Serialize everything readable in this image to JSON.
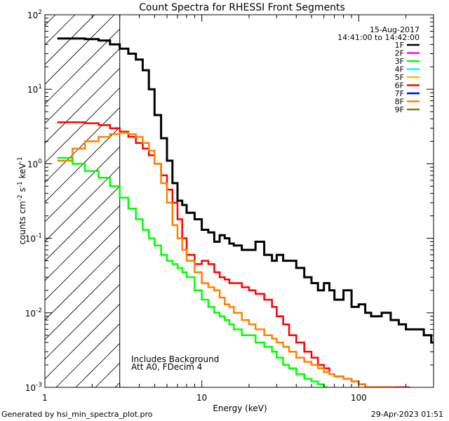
{
  "chart_data": {
    "type": "line",
    "title": "Count Spectra for RHESSI Front Segments",
    "xlabel": "Energy (keV)",
    "ylabel": "counts cm⁻² s⁻¹ keV⁻¹",
    "ylabel_parts": [
      "counts cm",
      "-2",
      " s",
      "-1",
      " keV",
      "-1"
    ],
    "xscale": "log",
    "yscale": "log",
    "xlim": [
      1,
      300
    ],
    "ylim": [
      0.001,
      100
    ],
    "x_ticks": [
      {
        "value": 1,
        "label": "1"
      },
      {
        "value": 10,
        "label": "10"
      },
      {
        "value": 100,
        "label": "100"
      }
    ],
    "y_ticks": [
      {
        "value": 0.001,
        "base": "10",
        "exp": "-3"
      },
      {
        "value": 0.01,
        "base": "10",
        "exp": "-2"
      },
      {
        "value": 0.1,
        "base": "10",
        "exp": "-1"
      },
      {
        "value": 1,
        "base": "10",
        "exp": "0"
      },
      {
        "value": 10,
        "base": "10",
        "exp": "1"
      },
      {
        "value": 100,
        "base": "10",
        "exp": "2"
      }
    ],
    "date": "15-Aug-2017",
    "time_range": "14:41:00 to 14:42:00",
    "hatched_region_upper_keV": 3,
    "annotation_lines": [
      "Includes Background",
      "Att A0, FDecim 4"
    ],
    "legend": [
      {
        "name": "1F",
        "color": "#000000"
      },
      {
        "name": "2F",
        "color": "#ff00ff"
      },
      {
        "name": "3F",
        "color": "#00ff00"
      },
      {
        "name": "4F",
        "color": "#00ffff"
      },
      {
        "name": "5F",
        "color": "#ffbf00"
      },
      {
        "name": "6F",
        "color": "#ff0000"
      },
      {
        "name": "7F",
        "color": "#0000ff"
      },
      {
        "name": "8F",
        "color": "#ff8000"
      },
      {
        "name": "9F",
        "color": "#808000"
      }
    ],
    "series": [
      {
        "name": "1F",
        "color": "#000000",
        "stroke_width": 3,
        "x": [
          1.2,
          1.5,
          1.8,
          2.2,
          2.6,
          3.0,
          3.4,
          3.8,
          4.2,
          4.6,
          5.0,
          5.5,
          6.0,
          6.5,
          7.0,
          7.5,
          8.0,
          9.0,
          10.0,
          11.0,
          12.0,
          13.0,
          14.0,
          15.0,
          16.0,
          18.0,
          20.0,
          22.0,
          25.0,
          28.0,
          30.0,
          33.0,
          36.0,
          40.0,
          45.0,
          50.0,
          55.0,
          60.0,
          65.0,
          70.0,
          80.0,
          90.0,
          100.0,
          110.0,
          120.0,
          140.0,
          160.0,
          180.0,
          200.0,
          230.0,
          260.0,
          290.0
        ],
        "y": [
          48,
          48,
          47,
          45,
          40,
          35,
          30,
          25,
          18,
          10,
          4.5,
          2.2,
          1.1,
          0.55,
          0.32,
          0.28,
          0.22,
          0.18,
          0.13,
          0.12,
          0.09,
          0.11,
          0.1,
          0.085,
          0.08,
          0.07,
          0.07,
          0.09,
          0.06,
          0.05,
          0.06,
          0.05,
          0.05,
          0.04,
          0.03,
          0.025,
          0.02,
          0.025,
          0.02,
          0.015,
          0.02,
          0.012,
          0.013,
          0.01,
          0.009,
          0.01,
          0.008,
          0.007,
          0.006,
          0.006,
          0.005,
          0.004
        ]
      },
      {
        "name": "6F",
        "color": "#ff0000",
        "stroke_width": 2.5,
        "x": [
          1.2,
          1.5,
          1.8,
          2.2,
          2.6,
          3.0,
          3.4,
          3.8,
          4.2,
          4.6,
          5.0,
          5.5,
          6.0,
          6.5,
          7.0,
          7.5,
          8.0,
          9.0,
          10.0,
          11.0,
          12.0,
          13.0,
          14.0,
          15.0,
          16.0,
          18.0,
          20.0,
          22.0,
          25.0,
          28.0,
          30.0,
          33.0,
          36.0,
          40.0,
          45.0,
          50.0,
          55.0,
          60.0,
          65.0,
          70.0,
          80.0,
          90.0,
          100.0,
          110.0,
          120.0,
          140.0,
          160.0,
          180.0,
          200.0
        ],
        "y": [
          3.6,
          3.6,
          3.5,
          3.3,
          3.0,
          2.7,
          2.3,
          1.9,
          1.6,
          1.3,
          1.0,
          0.7,
          0.45,
          0.3,
          0.18,
          0.1,
          0.06,
          0.045,
          0.05,
          0.045,
          0.035,
          0.03,
          0.028,
          0.025,
          0.025,
          0.022,
          0.02,
          0.018,
          0.015,
          0.012,
          0.009,
          0.007,
          0.005,
          0.004,
          0.003,
          0.0025,
          0.002,
          0.0018,
          0.0015,
          0.0014,
          0.0013,
          0.0012,
          0.0011,
          0.001,
          0.001,
          0.001,
          0.001,
          0.001,
          0.001
        ]
      },
      {
        "name": "8F",
        "color": "#ff8000",
        "stroke_width": 2.5,
        "x": [
          1.2,
          1.5,
          1.8,
          2.2,
          2.6,
          3.0,
          3.4,
          3.8,
          4.2,
          4.6,
          5.0,
          5.5,
          6.0,
          6.5,
          7.0,
          7.5,
          8.0,
          9.0,
          10.0,
          11.0,
          12.0,
          13.0,
          14.0,
          15.0,
          16.0,
          18.0,
          20.0,
          22.0,
          25.0,
          28.0,
          30.0,
          33.0,
          36.0,
          40.0,
          45.0,
          50.0,
          55.0,
          60.0,
          65.0,
          70.0,
          80.0,
          90.0,
          100.0,
          110.0,
          120.0,
          140.0,
          160.0
        ],
        "y": [
          1.1,
          1.6,
          2.0,
          2.3,
          2.5,
          2.6,
          2.5,
          2.3,
          1.9,
          1.5,
          1.0,
          0.55,
          0.3,
          0.15,
          0.1,
          0.07,
          0.05,
          0.035,
          0.025,
          0.022,
          0.02,
          0.016,
          0.013,
          0.012,
          0.01,
          0.008,
          0.007,
          0.006,
          0.005,
          0.0045,
          0.004,
          0.0035,
          0.003,
          0.0025,
          0.0022,
          0.002,
          0.0018,
          0.0016,
          0.0015,
          0.0014,
          0.0013,
          0.0012,
          0.0011,
          0.001,
          0.001,
          0.001,
          0.001
        ]
      },
      {
        "name": "3F",
        "color": "#00ff00",
        "stroke_width": 2.5,
        "x": [
          1.2,
          1.5,
          1.8,
          2.2,
          2.6,
          3.0,
          3.4,
          3.8,
          4.2,
          4.6,
          5.0,
          5.5,
          6.0,
          6.5,
          7.0,
          7.5,
          8.0,
          9.0,
          10.0,
          11.0,
          12.0,
          13.0,
          14.0,
          15.0,
          16.0,
          18.0,
          20.0,
          22.0,
          25.0,
          28.0,
          30.0,
          33.0,
          36.0,
          40.0,
          45.0,
          50.0,
          55.0,
          60.0
        ],
        "y": [
          1.2,
          1.0,
          0.8,
          0.65,
          0.5,
          0.35,
          0.25,
          0.18,
          0.13,
          0.1,
          0.08,
          0.06,
          0.05,
          0.045,
          0.04,
          0.035,
          0.03,
          0.02,
          0.015,
          0.012,
          0.01,
          0.009,
          0.008,
          0.007,
          0.006,
          0.005,
          0.005,
          0.004,
          0.0035,
          0.003,
          0.0025,
          0.002,
          0.0018,
          0.0015,
          0.0013,
          0.0012,
          0.0011,
          0.001
        ]
      }
    ]
  },
  "footer": {
    "generated_by": "Generated by hsi_min_spectra_plot.pro",
    "timestamp": "29-Apr-2023 01:51"
  }
}
